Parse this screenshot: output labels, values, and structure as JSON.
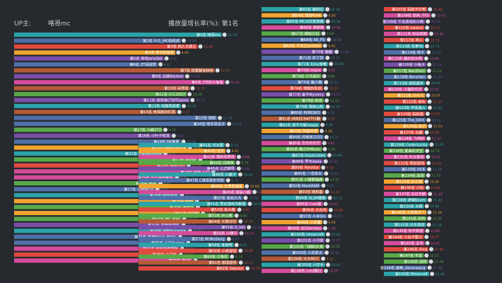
{
  "header": {
    "up_label": "UP主:",
    "up_name": "咯哥mc",
    "metric_label": "播放量增长率(%): 第1名"
  },
  "chart_data": [
    {
      "type": "bar",
      "orientation": "horizontal",
      "title": "播放量增长率(%): 第1名",
      "categories": [
        "第1名 咯哥mc",
        "第2名 小土_MC吼吼虎",
        "第3名 桃久大靡王",
        "第4名 老实和塑皮",
        "第5名 领哥JorisSkii",
        "第6名 ZT哥驭犹",
        "第7名 阿蛋解说林林",
        "第8名 兆唐Barbee",
        "第9名 (TE的小兔兔",
        "第10名 亲哥说",
        "第11名 小三1017",
        "第12名 是然是CTNTGame",
        "第13名 电路同道者",
        "第14名 食铁鹅的红鸦",
        "第15名 铁鸥",
        "第16名 电车吊瓜子",
        "第17名 小橘272",
        "第18名 小叶子有说",
        "第19名 HK客客",
        "第20名 Wave.Jenny",
        "第21名 达斯塔Gorilla",
        "第22名 柏恰哈",
        "第23名 游戏人的",
        "第24名 林林_JTD",
        "第25名 小少游戏解说",
        "第26名 狠哥",
        "第27名 天鲸猫TD",
        "第28名 Mini鹭鹭",
        "第29名 BeB",
        "第30名 老咩说",
        "第31名 无谓路",
        "第32名 MC_BXE",
        "第33名 我想在也哈",
        "第34名 兜帽bukaaka",
        "第35名 黑麦Black_Miles",
        "第36名 人力Aurora",
        "第37名 你的劲道猫咪",
        "第38名 小艾桃",
        "第39名 第0名"
      ],
      "values": [
        12.74,
        10.24,
        11.26,
        9.9,
        9.18,
        8.81,
        12.31,
        10.45,
        12.91,
        10.78,
        10.59,
        10.77,
        10.24,
        9.97,
        12.45,
        13.02,
        9.11,
        9.62,
        10.22,
        10.61,
        9.11,
        11.26,
        10.54,
        12.05,
        9.82,
        8.81,
        8.62,
        10.12,
        11.05,
        11.1,
        11.42,
        10.27,
        10.22,
        10.62,
        10.02,
        10.51,
        10.14,
        10.05,
        10.96
      ],
      "colors": [
        "#2ba3a8",
        "#4f6fa8",
        "#e04a3f",
        "#f2a431",
        "#7a4ea8",
        "#4f6fa8",
        "#b45a38",
        "#7a4ea8",
        "#d54c9c",
        "#b45a38",
        "#58a84a",
        "#7a4ea8",
        "#2ba3a8",
        "#b45a38",
        "#4f6fa8",
        "#4f6fa8",
        "#58a84a",
        "#7a4ea8",
        "#4f6fa8",
        "#f2a431",
        "#2ba3a8",
        "#58a84a",
        "#e04a3f",
        "#d54c9c",
        "#d54c9c",
        "#58a84a",
        "#4f6fa8",
        "#2ba3a8",
        "#f2a431",
        "#58a84a",
        "#f2a431",
        "#58a84a",
        "#7a4ea8",
        "#2ba3a8",
        "#4f6fa8",
        "#4f6fa8",
        "#d54c9c",
        "#e04a3f",
        "#d54c9c"
      ]
    },
    {
      "type": "bar",
      "orientation": "horizontal",
      "categories": [
        "第41名 日大那",
        "第42名 吉作",
        "第43名 我的世界侠",
        "第44名 白咪咪",
        "第45名 公式推导",
        "第46名 小鹿子",
        "第47名 C语言原生代码",
        "第48名 全景直播系",
        "第49名 威徒小鹿",
        "第50名 尬尬大大",
        "第51名 爱玩游戏与新零",
        "第52名 金大鹿",
        "第53名 开心熊",
        "第54名 大熊仔仔",
        "第55名 Q_hill",
        "第56名 小狮子",
        "第57名 MrWuSong",
        "第58名 食鱼鸭",
        "第59名 小寿游戏",
        "第60名 小兔花",
        "第61名 都很超快",
        "第62名 Salyout"
      ],
      "values": [
        8.73,
        8.82,
        9.88,
        9.79,
        9.88,
        10.02,
        8.79,
        10.68,
        11.47,
        10.56,
        10.99,
        9.92,
        9.64,
        10.04,
        10.9,
        10.14,
        8.87,
        9.65,
        10.05,
        9.18,
        10.07,
        10.76
      ],
      "colors": [
        "#2ba3a8",
        "#f2a431",
        "#d54c9c",
        "#58a84a",
        "#7a4ea8",
        "#2ba3a8",
        "#4f6fa8",
        "#f2a431",
        "#d54c9c",
        "#4f6fa8",
        "#2ba3a8",
        "#e04a3f",
        "#58a84a",
        "#b45a38",
        "#7a4ea8",
        "#d54c9c",
        "#4f6fa8",
        "#2ba3a8",
        "#e04a3f",
        "#58a84a",
        "#b45a38",
        "#e04a3f"
      ]
    },
    {
      "type": "bar",
      "orientation": "horizontal",
      "categories": [
        "第63名 第四位",
        "第64名 我是Funk",
        "第65名 MC大红蒸笼模",
        "第66名 美丽鱼",
        "第67名 捕蚊白包",
        "第68名 XK_FS",
        "第69名 不会ZyanEion",
        "第70名 鹿鹿",
        "第71名 余丁羽",
        "第72名 Easy爱看",
        "第73名 myjm",
        "第74名 小鸟游乐",
        "第75名 鹿小猫",
        "第76名 保姆的乳鸽",
        "第77名 客平Mystery",
        "第78名 粉色",
        "第79名 我是山秋",
        "第80名 林林DJKO",
        "第81名 MINECRAFT行器",
        "第82名 是不可能happy",
        "第83名 阿基米德",
        "第84名 伴星是2333",
        "第85名 华杰的乐乐",
        "第86名 教之作Music",
        "第87名 EaseCollen",
        "第88名 罗天dada",
        "第89名 Parottor",
        "第90名 一念泉水",
        "第91名 小猪野猫鹿",
        "第92名 MarkRAM",
        "第93名 摊林基",
        "第94名 ALSH饿鱼",
        "第95名 Cool源",
        "第96名 大白鸡",
        "第97名 小羊Shi",
        "第98名 小天童",
        "第99名 白DShiraka",
        "第100名 minecraft",
        "第101名 小可爱",
        "第102名 飞翔的大鱼",
        "第103名 人机老大",
        "第104名 大大MCC",
        "第105名 小羊手",
        "第106名 med路行"
      ],
      "values": [
        10.32,
        9.95,
        10.38,
        10.45,
        9.66,
        10.54,
        9.92,
        11.82,
        10.33,
        10.9,
        9.91,
        9.8,
        10.1,
        10.07,
        10.43,
        10.2,
        10.37,
        9.79,
        9.83,
        9.5,
        9.38,
        10.17,
        9.81,
        9.9,
        10.64,
        10.04,
        9.63,
        10.11,
        10.22,
        9.66,
        10.26,
        10.72,
        10.01,
        10.86,
        10.71,
        9.95,
        9.96,
        10.42,
        10.37,
        10.35,
        10.19,
        9.62,
        10.42,
        10.07
      ],
      "colors": [
        "#2ba3a8",
        "#f2a431",
        "#2ba3a8",
        "#d54c9c",
        "#58a84a",
        "#4f6fa8",
        "#f2a431",
        "#7a4ea8",
        "#4f6fa8",
        "#2ba3a8",
        "#d54c9c",
        "#58a84a",
        "#4f6fa8",
        "#e04a3f",
        "#7a4ea8",
        "#58a84a",
        "#2ba3a8",
        "#4f6fa8",
        "#b45a38",
        "#2ba3a8",
        "#f2a431",
        "#4f6fa8",
        "#d54c9c",
        "#58a84a",
        "#2ba3a8",
        "#7a4ea8",
        "#e04a3f",
        "#4f6fa8",
        "#58a84a",
        "#4f6fa8",
        "#b45a38",
        "#2ba3a8",
        "#d54c9c",
        "#e04a3f",
        "#4f6fa8",
        "#f2a431",
        "#d54c9c",
        "#2ba3a8",
        "#7a4ea8",
        "#58a84a",
        "#4f6fa8",
        "#b45a38",
        "#2ba3a8",
        "#d54c9c"
      ]
    },
    {
      "type": "bar",
      "orientation": "horizontal",
      "categories": [
        "第107名 蚂蚁不乐鸭",
        "第108名 恰妈_不行",
        "第109名 不会游戏的小熊",
        "第110名 Lwshui",
        "第111名 粉丝视频",
        "第112名 鸣人",
        "第113名 狂拳Yo",
        "第114名 林子",
        "第115名 最好的文明",
        "第116名 小兔子",
        "第117名 RenZhen",
        "第118名 Benzhen",
        "第119名 越来越多",
        "第120名 小猫的乐乐",
        "第121名 小十六",
        "第122名 老布",
        "第123名 学而渔人",
        "第124名 蚂蚁狼",
        "第125名 The_DHX",
        "第126名 兔子",
        "第127名 白鹿",
        "第128名 飞鸡的",
        "第129名 CoderLucky",
        "第130名 夏曲的天空",
        "第131名 东方游戏",
        "第132名 我就游戏",
        "第133名 OCK",
        "第134名 发哥",
        "第135名 红小哥",
        "第136名 小玩",
        "第137名 白白天鹅",
        "第138名 虎啸Boom",
        "第139名 天枫",
        "第140名 小鸡有不一",
        "第141名 天的",
        "第142名 乐乐游戏",
        "第143名 你不知道",
        "第144名 小白不要小",
        "第145名 五号",
        "第146名 Xing",
        "第147名 不是",
        "第148名 自鸣",
        "第149名 故数_damowang",
        "第150名 Minecraft"
      ],
      "values": [
        11.48,
        12.41,
        10.93,
        10.73,
        11.82,
        10.72,
        10.72,
        11.11,
        10.49,
        11.29,
        11.25,
        11.35,
        10.91,
        10.5,
        10.97,
        11.37,
        11.43,
        10.87,
        11.12,
        11.51,
        10.65,
        11.12,
        11.91,
        10.74,
        10.97,
        11.13,
        11.28,
        11.01,
        10.56,
        10.86,
        11.48,
        11.43,
        10.66,
        11.34,
        11.3,
        11.18,
        10.8,
        10.57,
        10.81,
        11.84,
        10.57,
        11.76,
        11.38,
        12.06
      ],
      "colors": [
        "#e04a3f",
        "#d54c9c",
        "#7a4ea8",
        "#e04a3f",
        "#d54c9c",
        "#e04a3f",
        "#2ba3a8",
        "#4f6fa8",
        "#d54c9c",
        "#7a4ea8",
        "#58a84a",
        "#4f6fa8",
        "#2ba3a8",
        "#d54c9c",
        "#f2a431",
        "#e04a3f",
        "#2ba3a8",
        "#e04a3f",
        "#4f6fa8",
        "#f2a431",
        "#e04a3f",
        "#d54c9c",
        "#2ba3a8",
        "#58a84a",
        "#d54c9c",
        "#e04a3f",
        "#4f6fa8",
        "#58a84a",
        "#f2a431",
        "#e04a3f",
        "#d54c9c",
        "#2ba3a8",
        "#2ba3a8",
        "#f2a431",
        "#58a84a",
        "#2ba3a8",
        "#d54c9c",
        "#e04a3f",
        "#d54c9c",
        "#e04a3f",
        "#58a84a",
        "#58a84a",
        "#4f6fa8",
        "#2ba3a8"
      ]
    }
  ]
}
